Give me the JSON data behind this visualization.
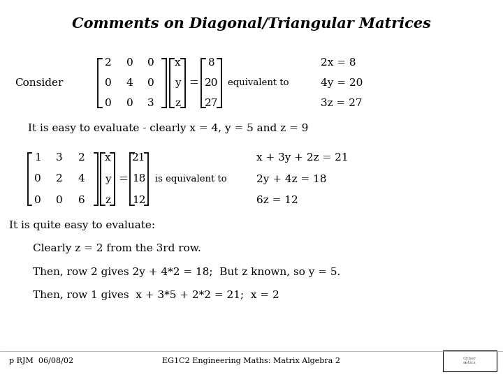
{
  "title": "Comments on Diagonal/Triangular Matrices",
  "background_color": "#ffffff",
  "text_color": "#000000",
  "title_fontsize": 15,
  "body_fontsize": 11,
  "small_fontsize": 9.5,
  "footer_fontsize": 8,
  "footer_left": "p RJM  06/08/02",
  "footer_center": "EG1C2 Engineering Maths: Matrix Algebra 2",
  "consider_text": "Consider",
  "equiv_text1": "equivalent to",
  "equiv_eqs1": [
    "2x = 8",
    "4y = 20",
    "3z = 27"
  ],
  "easy_text": "It is easy to evaluate - clearly x = 4, y = 5 and z = 9",
  "equiv_text2": "is equivalent to",
  "equiv_eqs2": [
    "x + 3y + 2z = 21",
    "2y + 4z = 18",
    "6z = 12"
  ],
  "quite_easy": "It is quite easy to evaluate:",
  "step1": "Clearly z = 2 from the 3rd row.",
  "step2": "Then, row 2 gives 2y + 4*2 = 18;  But z known, so y = 5.",
  "step3": "Then, row 1 gives  x + 3*5 + 2*2 = 21;  x = 2",
  "entries_A1": [
    [
      "2",
      "0",
      "0"
    ],
    [
      "0",
      "4",
      "0"
    ],
    [
      "0",
      "0",
      "3"
    ]
  ],
  "entries_A2": [
    [
      "1",
      "3",
      "2"
    ],
    [
      "0",
      "2",
      "4"
    ],
    [
      "0",
      "0",
      "6"
    ]
  ],
  "vec_x": [
    "x",
    "y",
    "z"
  ],
  "vec_b1": [
    "8",
    "20",
    "27"
  ],
  "vec_b2": [
    "21",
    "18",
    "12"
  ]
}
